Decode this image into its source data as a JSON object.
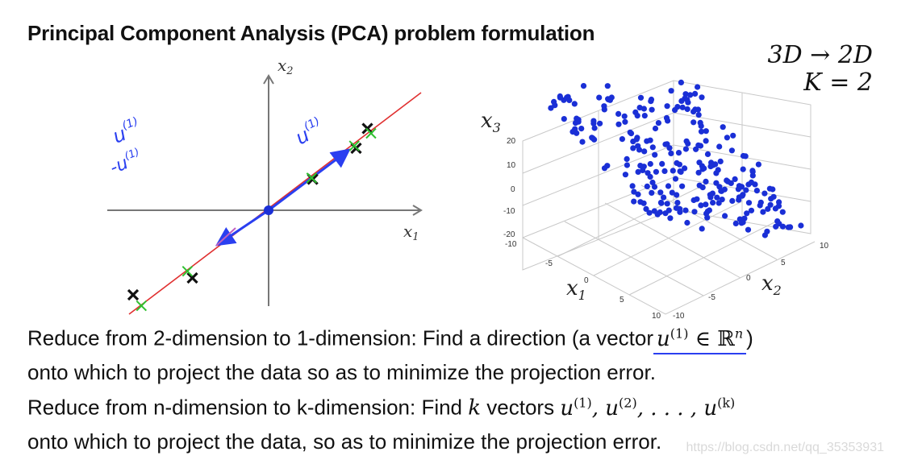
{
  "title": "Principal Component Analysis (PCA) problem formulation",
  "top_right": {
    "line1": "3D → 2D",
    "line2": "K = 2"
  },
  "plot2d": {
    "x1_label": "x",
    "x1_sub": "1",
    "x2_label": "x",
    "x2_sub": "2",
    "annot_u": "u",
    "annot_u_sup": "(1)",
    "annot_neg_u": "-u",
    "annot_neg_sup": "(1)",
    "annot_u_arrow": "u",
    "annot_u_arrow_sup": "(1)",
    "points": [
      [
        -2.4,
        -1.5
      ],
      [
        -1.35,
        -1.2
      ],
      [
        0.78,
        0.55
      ],
      [
        1.55,
        1.1
      ],
      [
        1.75,
        1.45
      ]
    ]
  },
  "plot3d": {
    "x3_label": "x",
    "x3_sub": "3",
    "x1_label": "x",
    "x1_sub": "1",
    "x2_label": "x",
    "x2_sub": "2",
    "z_ticks": [
      "20",
      "10",
      "0",
      "-10",
      "-20"
    ],
    "x_ticks": [
      "-10",
      "-5",
      "0",
      "5",
      "10"
    ],
    "y_ticks": [
      "-10",
      "-5",
      "0",
      "5",
      "10"
    ]
  },
  "paragraph1": {
    "line1_text": "Reduce from 2-dimension to 1-dimension: Find a direction (a vector",
    "line1_math": "u",
    "line1_sup": "(1)",
    "line1_math2": " ∈ ℝ",
    "line1_sup2": "n",
    "line1_close": ")",
    "line2": "onto which to project the data so as to minimize the projection error."
  },
  "paragraph2": {
    "line1_text": "Reduce from n-dimension to k-dimension: Find",
    "line1_k": "k",
    "line1_vectors": "vectors",
    "line1_math": "u",
    "line1_sup1": "(1)",
    "line1_sep1": ", u",
    "line1_sup2": "(2)",
    "line1_sep2": ", . . . , u",
    "line1_sup3": "(k)",
    "line2": "onto which to project the data, so as to minimize the projection error."
  },
  "watermark": "https://blog.csdn.net/qq_35353931",
  "colors": {
    "blue": "#1a2fd6",
    "red": "#e03030",
    "green": "#2fc02f",
    "pen_blue": "#2a3ff0"
  }
}
